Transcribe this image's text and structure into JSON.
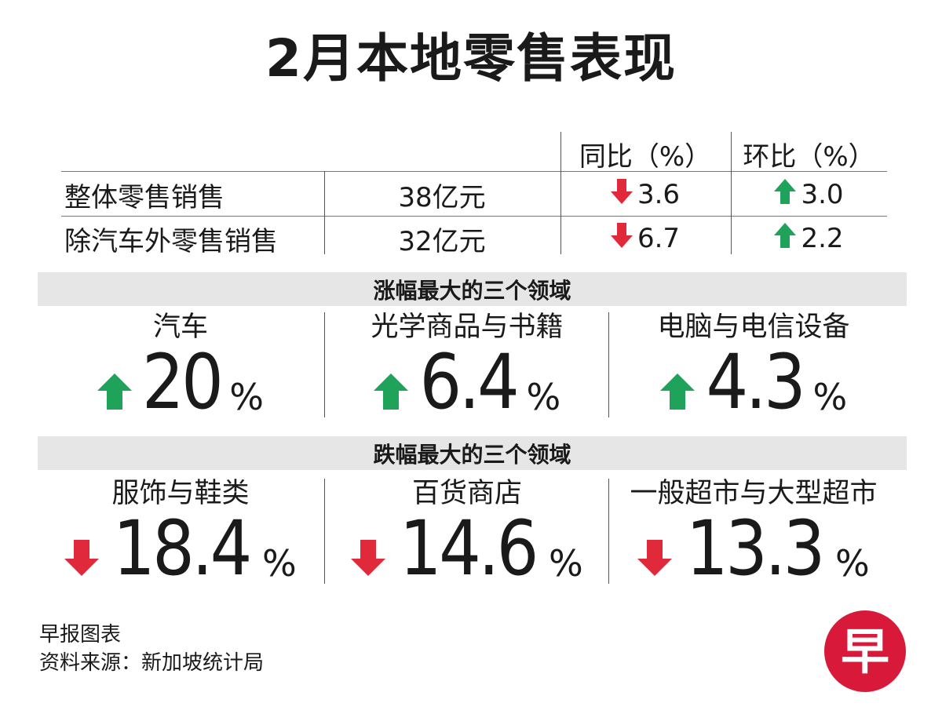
{
  "title": "2月本地零售表现",
  "table": {
    "headers": {
      "yoy": "同比（%）",
      "mom": "环比（%）"
    },
    "rows": [
      {
        "name": "整体零售销售",
        "value": "38亿元",
        "yoy": "3.6",
        "mom": "3.0"
      },
      {
        "name": "除汽车外零售销售",
        "value": "32亿元",
        "yoy": "6.7",
        "mom": "2.2"
      }
    ]
  },
  "rising": {
    "heading": "涨幅最大的三个领域",
    "items": [
      {
        "label": "汽车",
        "value": "20",
        "unit": "%"
      },
      {
        "label": "光学商品与书籍",
        "value": "6.4",
        "unit": "%"
      },
      {
        "label": "电脑与电信设备",
        "value": "4.3",
        "unit": "%"
      }
    ]
  },
  "falling": {
    "heading": "跌幅最大的三个领域",
    "items": [
      {
        "label": "服饰与鞋类",
        "value": "18.4",
        "unit": "%"
      },
      {
        "label": "百货商店",
        "value": "14.6",
        "unit": "%"
      },
      {
        "label": "一般超市与大型超市",
        "value": "13.3",
        "unit": "%"
      }
    ]
  },
  "footer": {
    "line1": "早报图表",
    "line2": "资料来源：新加坡统计局"
  },
  "logo_char": "早",
  "colors": {
    "up": "#1fa25a",
    "down": "#e0293b",
    "logo_bg": "#d8193a",
    "bar_bg": "#e6e6e6"
  }
}
